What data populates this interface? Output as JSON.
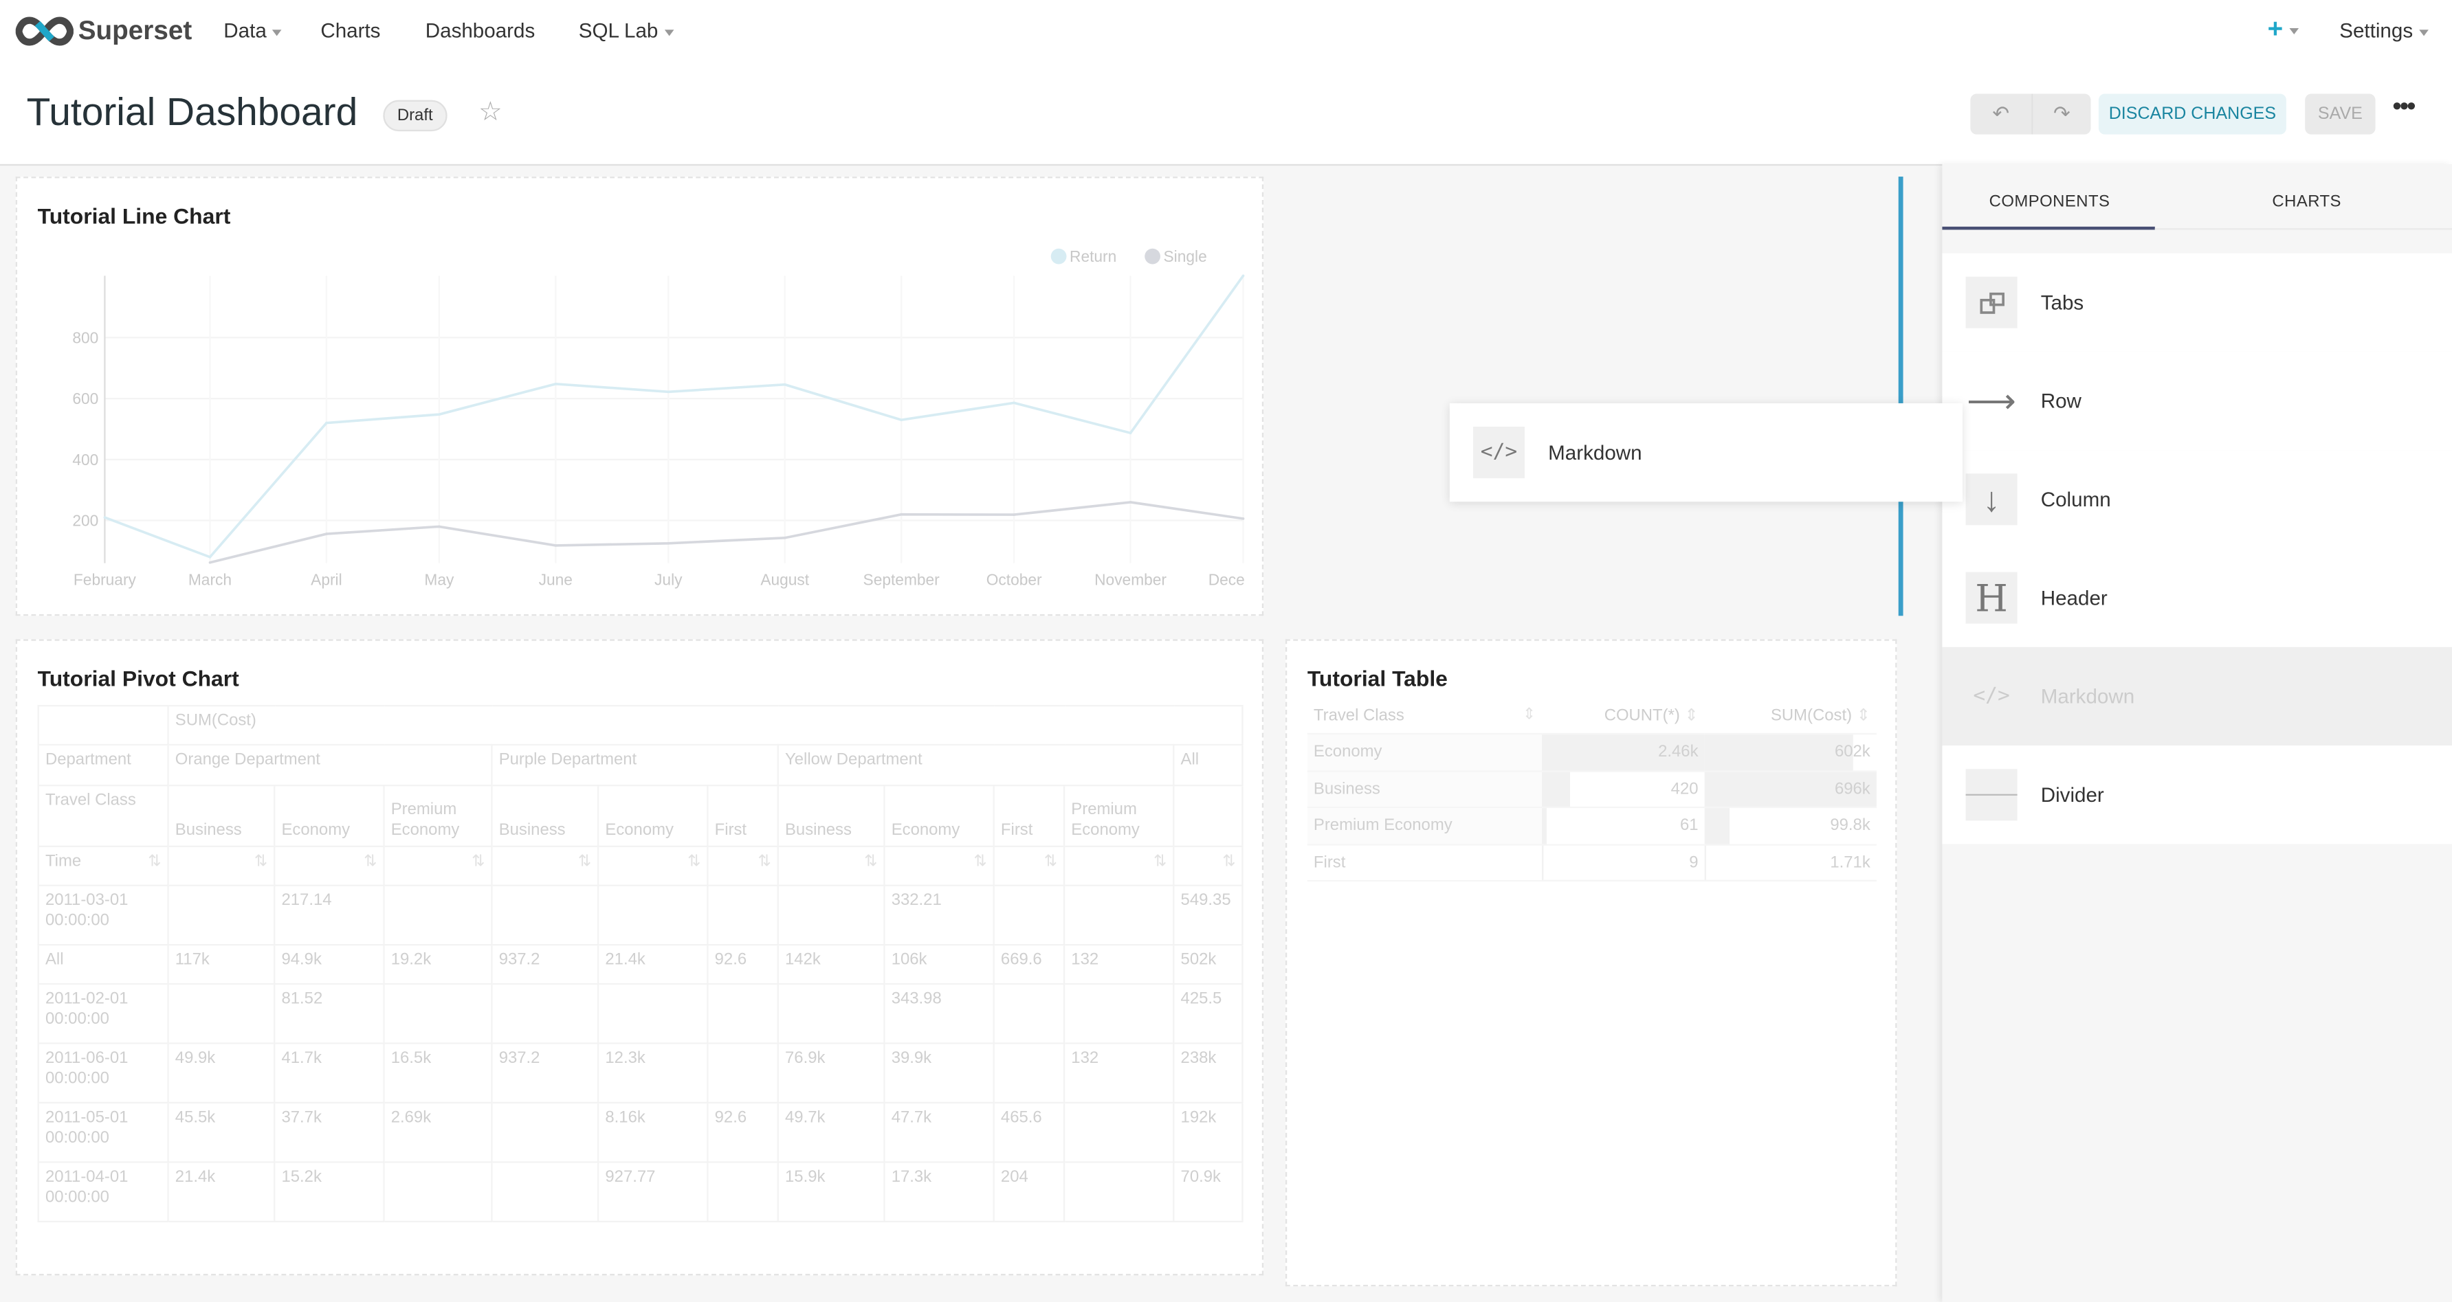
{
  "nav": {
    "brand": "Superset",
    "items": [
      {
        "label": "Data",
        "dropdown": true
      },
      {
        "label": "Charts",
        "dropdown": false
      },
      {
        "label": "Dashboards",
        "dropdown": false
      },
      {
        "label": "SQL Lab",
        "dropdown": true
      }
    ],
    "settings_label": "Settings",
    "plus_icon": "plus-icon",
    "accent": "#20a7c9"
  },
  "header": {
    "title": "Tutorial Dashboard",
    "badge": "Draft",
    "discard_label": "DISCARD CHANGES",
    "save_label": "SAVE"
  },
  "line_chart": {
    "title": "Tutorial Line Chart",
    "chart_data": {
      "type": "line",
      "legend": "top-right",
      "ylim": [
        60,
        1003
      ],
      "yticks": [
        200,
        400,
        600,
        800
      ],
      "xtick_labels": [
        "February",
        "March",
        "April",
        "May",
        "June",
        "July",
        "August",
        "September",
        "October",
        "November",
        "Dece"
      ],
      "x": [
        "2011-02-01",
        "2011-03-01",
        "2011-04-01",
        "2011-05-01",
        "2011-06-01",
        "2011-07-01",
        "2011-08-01",
        "2011-09-01",
        "2011-10-01",
        "2011-11-01",
        "2011-12-01"
      ],
      "series": [
        {
          "name": "Return",
          "color": "#d7ecf3",
          "values": [
            210,
            80,
            520,
            548,
            648,
            622,
            646,
            530,
            586,
            487,
            1003
          ]
        },
        {
          "name": "Single",
          "color": "#d6d8de",
          "values": [
            null,
            62,
            156,
            180,
            118,
            125,
            143,
            220,
            219,
            260,
            206
          ]
        }
      ]
    }
  },
  "pivot": {
    "title": "Tutorial Pivot Chart",
    "metric": "SUM(Cost)",
    "dept_label": "Department",
    "class_label": "Travel Class",
    "time_label": "Time",
    "departments": [
      {
        "name": "Orange Department",
        "span": 3
      },
      {
        "name": "Purple Department",
        "span": 3
      },
      {
        "name": "Yellow Department",
        "span": 4
      },
      {
        "name": "All",
        "span": 1
      }
    ],
    "classes": [
      "Business",
      "Economy",
      "Premium Economy",
      "Business",
      "Economy",
      "First",
      "Business",
      "Economy",
      "First",
      "Premium Economy",
      ""
    ],
    "rows": [
      {
        "label": "2011-03-01 00:00:00",
        "cells": [
          "",
          "217.14",
          "",
          "",
          "",
          "",
          "",
          "332.21",
          "",
          "",
          "549.35"
        ]
      },
      {
        "label": "All",
        "cells": [
          "117k",
          "94.9k",
          "19.2k",
          "937.2",
          "21.4k",
          "92.6",
          "142k",
          "106k",
          "669.6",
          "132",
          "502k"
        ]
      },
      {
        "label": "2011-02-01 00:00:00",
        "cells": [
          "",
          "81.52",
          "",
          "",
          "",
          "",
          "",
          "343.98",
          "",
          "",
          "425.5"
        ]
      },
      {
        "label": "2011-06-01 00:00:00",
        "cells": [
          "49.9k",
          "41.7k",
          "16.5k",
          "937.2",
          "12.3k",
          "",
          "76.9k",
          "39.9k",
          "",
          "132",
          "238k"
        ]
      },
      {
        "label": "2011-05-01 00:00:00",
        "cells": [
          "45.5k",
          "37.7k",
          "2.69k",
          "",
          "8.16k",
          "92.6",
          "49.7k",
          "47.7k",
          "465.6",
          "",
          "192k"
        ]
      },
      {
        "label": "2011-04-01 00:00:00",
        "cells": [
          "21.4k",
          "15.2k",
          "",
          "",
          "927.77",
          "",
          "15.9k",
          "17.3k",
          "204",
          "",
          "70.9k"
        ]
      }
    ]
  },
  "table": {
    "title": "Tutorial Table",
    "columns": [
      "Travel Class",
      "COUNT(*)",
      "SUM(Cost)"
    ],
    "rows": [
      {
        "class": "Economy",
        "count": "2.46k",
        "sum": "602k",
        "count_bar_pct": 100,
        "sum_bar_pct": 86.5
      },
      {
        "class": "Business",
        "count": "420",
        "sum": "696k",
        "count_bar_pct": 17,
        "sum_bar_pct": 100
      },
      {
        "class": "Premium Economy",
        "count": "61",
        "sum": "99.8k",
        "count_bar_pct": 2.5,
        "sum_bar_pct": 14.3
      },
      {
        "class": "First",
        "count": "9",
        "sum": "1.71k",
        "count_bar_pct": 0.4,
        "sum_bar_pct": 0.25
      }
    ]
  },
  "panel": {
    "tabs": [
      "COMPONENTS",
      "CHARTS"
    ],
    "active_tab": "COMPONENTS",
    "components": [
      {
        "label": "Tabs",
        "icon": "tabs-icon"
      },
      {
        "label": "Row",
        "icon": "arrow-right-icon"
      },
      {
        "label": "Column",
        "icon": "arrow-down-icon"
      },
      {
        "label": "Header",
        "icon": "header-icon"
      },
      {
        "label": "Markdown",
        "icon": "code-icon",
        "disabled": true
      },
      {
        "label": "Divider",
        "icon": "divider-icon"
      }
    ]
  },
  "drag_ghost": {
    "label": "Markdown",
    "icon": "code-icon"
  }
}
